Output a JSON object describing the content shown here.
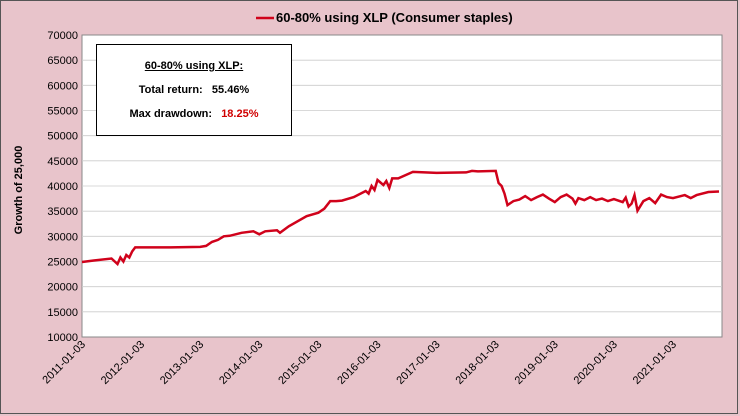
{
  "chart_data": {
    "type": "line",
    "title": "60-80% using XLP  (Consumer staples)",
    "legend_position": "top",
    "ylabel": "Growth of 25,000",
    "xlabel": "",
    "ylim": [
      10000,
      70000
    ],
    "y_ticks": [
      10000,
      15000,
      20000,
      25000,
      30000,
      35000,
      40000,
      45000,
      50000,
      55000,
      60000,
      65000,
      70000
    ],
    "x_ticks": [
      "2011-01-03",
      "2012-01-03",
      "2013-01-03",
      "2014-01-03",
      "2015-01-03",
      "2016-01-03",
      "2017-01-03",
      "2018-01-03",
      "2019-01-03",
      "2020-01-03",
      "2021-01-03"
    ],
    "grid": "horizontal",
    "series": [
      {
        "name": "60-80% using XLP  (Consumer staples)",
        "color": "#d0021b",
        "x": [
          2011.0,
          2011.2,
          2011.5,
          2011.6,
          2011.65,
          2011.7,
          2011.75,
          2011.8,
          2011.85,
          2011.9,
          2012.0,
          2012.5,
          2013.0,
          2013.1,
          2013.2,
          2013.3,
          2013.4,
          2013.5,
          2013.7,
          2013.9,
          2014.0,
          2014.1,
          2014.3,
          2014.35,
          2014.5,
          2014.8,
          2015.0,
          2015.1,
          2015.2,
          2015.3,
          2015.4,
          2015.6,
          2015.8,
          2015.85,
          2015.9,
          2015.95,
          2016.0,
          2016.1,
          2016.15,
          2016.2,
          2016.25,
          2016.35,
          2016.6,
          2016.8,
          2017.0,
          2017.5,
          2017.6,
          2017.7,
          2018.0,
          2018.05,
          2018.1,
          2018.15,
          2018.2,
          2018.3,
          2018.4,
          2018.5,
          2018.6,
          2018.7,
          2018.8,
          2018.9,
          2019.0,
          2019.1,
          2019.2,
          2019.3,
          2019.35,
          2019.4,
          2019.5,
          2019.6,
          2019.7,
          2019.8,
          2019.9,
          2020.0,
          2020.15,
          2020.2,
          2020.25,
          2020.3,
          2020.35,
          2020.4,
          2020.5,
          2020.6,
          2020.7,
          2020.8,
          2020.9,
          2021.0,
          2021.2,
          2021.3,
          2021.4,
          2021.6,
          2021.78
        ],
        "y": [
          24900,
          25200,
          25600,
          24500,
          25800,
          25000,
          26300,
          25800,
          27000,
          27800,
          27800,
          27800,
          27900,
          28100,
          28900,
          29300,
          30000,
          30100,
          30700,
          31000,
          30400,
          31000,
          31200,
          30700,
          32000,
          34000,
          34700,
          35500,
          37000,
          37000,
          37100,
          37800,
          39000,
          38500,
          40000,
          39200,
          41200,
          40200,
          41000,
          39600,
          41500,
          41500,
          42800,
          42700,
          42600,
          42700,
          43000,
          42900,
          43000,
          40600,
          40000,
          38500,
          36200,
          37000,
          37300,
          38000,
          37200,
          37800,
          38300,
          37500,
          36800,
          37800,
          38300,
          37500,
          36500,
          37600,
          37200,
          37800,
          37200,
          37500,
          37000,
          37400,
          36800,
          37700,
          35900,
          36500,
          38200,
          35100,
          37000,
          37600,
          36600,
          38300,
          37800,
          37600,
          38200,
          37600,
          38200,
          38800,
          38900
        ]
      }
    ]
  },
  "stats_box": {
    "title": "60-80% using XLP:",
    "total_return_label": "Total return:",
    "total_return_value": "55.46%",
    "max_drawdown_label": "Max drawdown:",
    "max_drawdown_value": "18.25%",
    "drawdown_color": "#d00000"
  },
  "colors": {
    "background": "#e8c4cb",
    "plot_background": "#ffffff",
    "gridline": "#cccccc"
  }
}
